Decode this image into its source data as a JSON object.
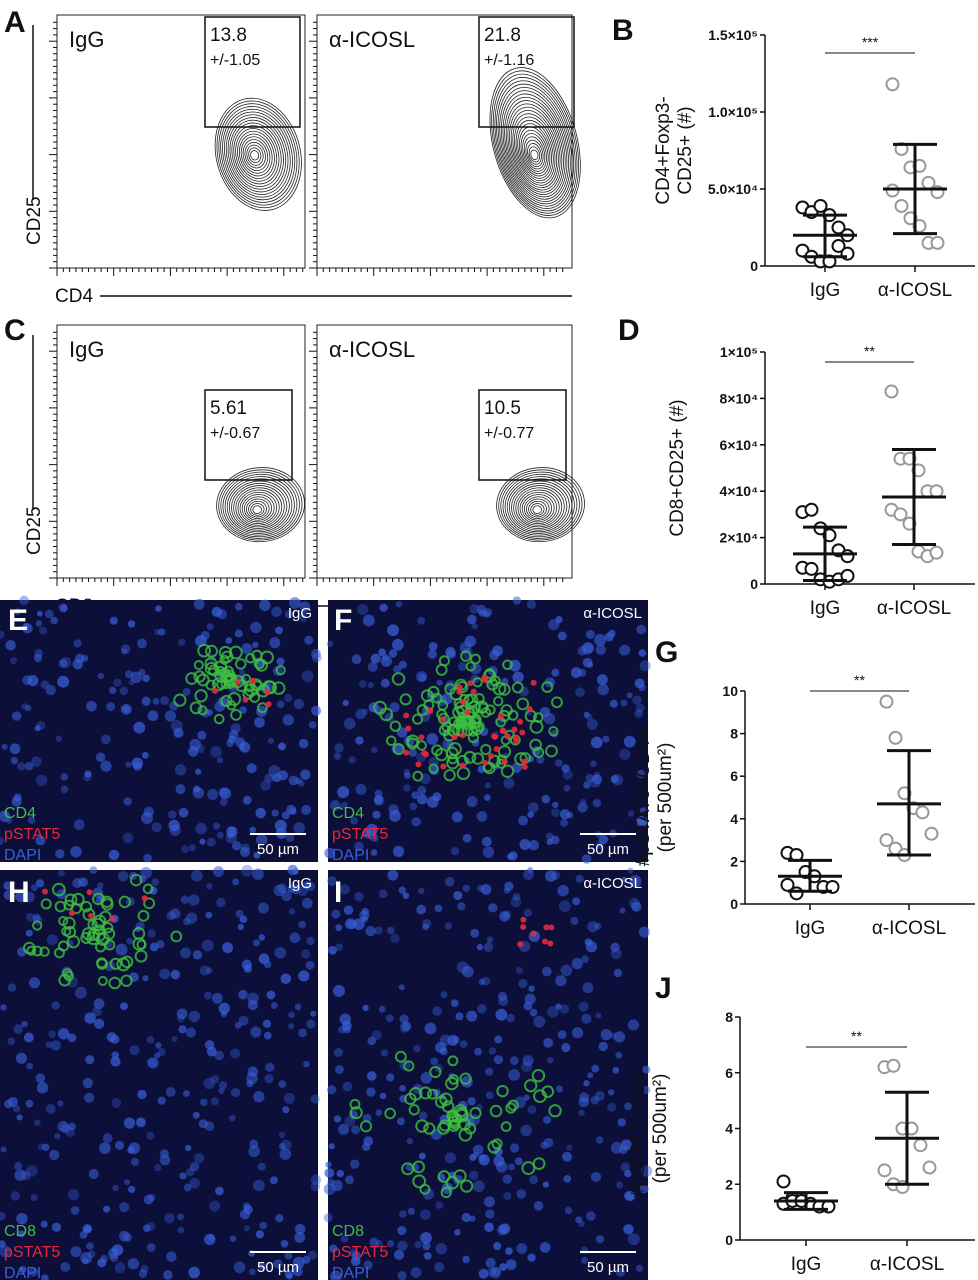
{
  "panel_letters": {
    "A": "A",
    "B": "B",
    "C": "C",
    "D": "D",
    "E": "E",
    "F": "F",
    "G": "G",
    "H": "H",
    "I": "I",
    "J": "J"
  },
  "flow": {
    "A": {
      "y_label": "CD25",
      "x_label": "CD4",
      "plots": [
        {
          "condition": "IgG",
          "gate_value": "13.8",
          "gate_sd": "+/-1.05"
        },
        {
          "condition": "α-ICOSL",
          "gate_value": "21.8",
          "gate_sd": "+/-1.16"
        }
      ]
    },
    "C": {
      "y_label": "CD25",
      "x_label": "CD8",
      "plots": [
        {
          "condition": "IgG",
          "gate_value": "5.61",
          "gate_sd": "+/-0.67"
        },
        {
          "condition": "α-ICOSL",
          "gate_value": "10.5",
          "gate_sd": "+/-0.77"
        }
      ]
    }
  },
  "micrographs": {
    "E": {
      "condition": "IgG",
      "stains": [
        "CD4",
        "pSTAT5",
        "DAPI"
      ],
      "scale_bar": "50 µm"
    },
    "F": {
      "condition": "α-ICOSL",
      "stains": [
        "CD4",
        "pSTAT5",
        "DAPI"
      ],
      "scale_bar": "50 µm"
    },
    "H": {
      "condition": "IgG",
      "stains": [
        "CD8",
        "pSTAT5",
        "DAPI"
      ],
      "scale_bar": "50 µm"
    },
    "I": {
      "condition": "α-ICOSL",
      "stains": [
        "CD8",
        "pSTAT5",
        "DAPI"
      ],
      "scale_bar": "50 µm"
    },
    "stain_colors": [
      "#3fbf3f",
      "#e8283c",
      "#3a5fd8"
    ]
  },
  "chart_data": [
    {
      "panel": "B",
      "type": "scatter",
      "categories": [
        "IgG",
        "α-ICOSL"
      ],
      "ylabel": [
        "CD4+Foxp3-",
        "CD25+ (#)"
      ],
      "ylim": [
        0,
        150000
      ],
      "yticks": [
        0,
        50000,
        100000,
        150000
      ],
      "ytick_labels": [
        "0",
        "5.0×10⁴",
        "1.0×10⁵",
        "1.5×10⁵"
      ],
      "significance": "***",
      "series": [
        {
          "values": [
            38000,
            35000,
            39000,
            33000,
            25000,
            20000,
            10000,
            6000,
            3000,
            3000,
            13000,
            8000
          ],
          "mean": 20000,
          "sd_upper": 33000,
          "sd_lower": 6000,
          "color": "#111111"
        },
        {
          "values": [
            118000,
            76000,
            64000,
            65000,
            54000,
            48000,
            49000,
            39000,
            31000,
            26000,
            15000,
            15000
          ],
          "mean": 50000,
          "sd_upper": 79000,
          "sd_lower": 21000,
          "color": "#999999"
        }
      ]
    },
    {
      "panel": "D",
      "type": "scatter",
      "categories": [
        "IgG",
        "α-ICOSL"
      ],
      "ylabel": [
        "CD8+CD25+ (#)"
      ],
      "ylim": [
        0,
        100000
      ],
      "yticks": [
        0,
        20000,
        40000,
        60000,
        80000,
        100000
      ],
      "ytick_labels": [
        "0",
        "2×10⁴",
        "4×10⁴",
        "6×10⁴",
        "8×10⁴",
        "1×10⁵"
      ],
      "significance": "**",
      "series": [
        {
          "values": [
            31000,
            32000,
            24000,
            21000,
            14500,
            12000,
            7000,
            6500,
            2000,
            1000,
            2000,
            3500
          ],
          "mean": 13000,
          "sd_upper": 24500,
          "sd_lower": 1500,
          "color": "#111111"
        },
        {
          "values": [
            83000,
            54000,
            54000,
            49000,
            40000,
            40000,
            32000,
            30000,
            26000,
            14000,
            12000,
            13500
          ],
          "mean": 37500,
          "sd_upper": 58000,
          "sd_lower": 17000,
          "color": "#999999"
        }
      ]
    },
    {
      "panel": "G",
      "type": "scatter",
      "categories": [
        "IgG",
        "α-ICOSL"
      ],
      "ylabel": [
        "#pSTAT5+CD4+",
        "(per 500um²)"
      ],
      "ylim": [
        0,
        10
      ],
      "yticks": [
        0,
        2,
        4,
        6,
        8,
        10
      ],
      "ytick_labels": [
        "0",
        "2",
        "4",
        "6",
        "8",
        "10"
      ],
      "significance": "**",
      "series": [
        {
          "values": [
            2.4,
            2.3,
            1.5,
            1.3,
            0.8,
            0.8,
            0.9,
            0.5
          ],
          "mean": 1.3,
          "sd_upper": 2.05,
          "sd_lower": 0.6,
          "color": "#111111"
        },
        {
          "values": [
            9.5,
            7.8,
            5.2,
            4.5,
            4.3,
            3.3,
            3.0,
            2.6,
            2.3
          ],
          "mean": 4.7,
          "sd_upper": 7.2,
          "sd_lower": 2.3,
          "color": "#999999"
        }
      ]
    },
    {
      "panel": "J",
      "type": "scatter",
      "categories": [
        "IgG",
        "α-ICOSL"
      ],
      "ylabel": [
        "#pSTAT5+CD8+",
        "(per 500um²)"
      ],
      "ylim": [
        0,
        8
      ],
      "yticks": [
        0,
        2,
        4,
        6,
        8
      ],
      "ytick_labels": [
        "0",
        "2",
        "4",
        "6",
        "8"
      ],
      "significance": "**",
      "series": [
        {
          "values": [
            2.1,
            1.5,
            1.4,
            1.3,
            1.2,
            1.2,
            1.3,
            1.4,
            1.4
          ],
          "mean": 1.4,
          "sd_upper": 1.7,
          "sd_lower": 1.1,
          "color": "#111111"
        },
        {
          "values": [
            6.2,
            6.25,
            4.0,
            4.0,
            3.4,
            2.6,
            2.5,
            2.0,
            1.9
          ],
          "mean": 3.65,
          "sd_upper": 5.3,
          "sd_lower": 2.0,
          "color": "#999999"
        }
      ]
    }
  ]
}
